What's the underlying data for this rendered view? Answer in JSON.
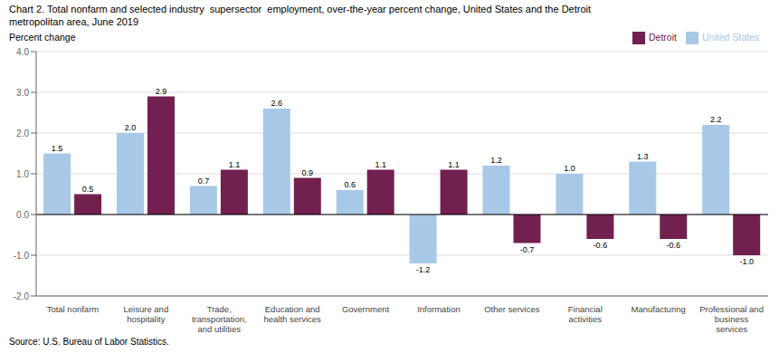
{
  "chart_data": {
    "type": "bar",
    "title": "Chart 2. Total nonfarm and selected industry  supersector  employment, over-the-year percent change, United States and the Detroit\nmetropolitan area, June 2019",
    "y_label": "Percent change",
    "source": "Source: U.S. Bureau of Labor Statistics.",
    "categories": [
      "Total nonfarm",
      "Leisure and\nhospitality",
      "Trade,\ntransportation,\nand utilities",
      "Education and\nhealth services",
      "Government",
      "Information",
      "Other services",
      "Financial\nactivities",
      "Manufacturing",
      "Professional and\nbusiness\nservices"
    ],
    "series": [
      {
        "name": "United States",
        "color": "#a8c8e8",
        "values": [
          1.5,
          2.0,
          0.7,
          2.6,
          0.6,
          -1.2,
          1.2,
          1.0,
          1.3,
          2.2
        ],
        "value_labels": [
          "1.5",
          "2.0",
          "0.7",
          "2.6",
          "0.6",
          "-1.2",
          "1.2",
          "1.0",
          "1.3",
          "2.2"
        ]
      },
      {
        "name": "Detroit",
        "color": "#722050",
        "values": [
          0.5,
          2.9,
          1.1,
          0.9,
          1.1,
          1.1,
          -0.7,
          -0.6,
          -0.6,
          -1.0
        ],
        "value_labels": [
          "0.5",
          "2.9",
          "1.1",
          "0.9",
          "1.1",
          "1.1",
          "-0.7",
          "-0.6",
          "-0.6",
          "-1.0"
        ]
      }
    ],
    "ylim": [
      -2.0,
      4.0
    ],
    "yticks": [
      {
        "value": -2.0,
        "label": "-2.0"
      },
      {
        "value": -1.0,
        "label": "-1.0"
      },
      {
        "value": 0.0,
        "label": "0.0"
      },
      {
        "value": 1.0,
        "label": "1.0"
      },
      {
        "value": 2.0,
        "label": "2.0"
      },
      {
        "value": 3.0,
        "label": "3.0"
      },
      {
        "value": 4.0,
        "label": "4.0"
      }
    ],
    "grid": true,
    "legend": "upper right",
    "data_labels": true
  }
}
